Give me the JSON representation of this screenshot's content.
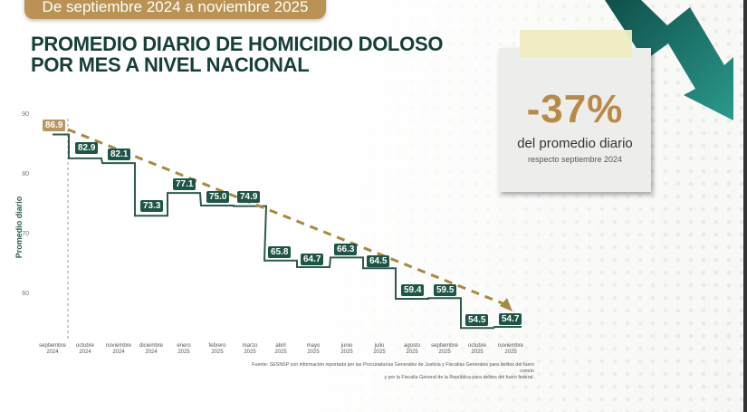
{
  "header": {
    "date_range": "De septiembre 2024 a noviembre 2025",
    "title_line1": "PROMEDIO DIARIO DE HOMICIDIO DOLOSO",
    "title_line2": "POR MES A NIVEL NACIONAL"
  },
  "callout": {
    "value": "-37%",
    "line1": "del promedio diario",
    "line2": "respecto septiembre 2024"
  },
  "colors": {
    "gold": "#b99254",
    "dark_green": "#173f3a",
    "step_line": "#2d5a4e",
    "label_bg": "#1d5546",
    "trend_dash": "#a88a3e",
    "arrow_teal": "#1e7d73"
  },
  "footer": {
    "source_line1": "Fuente: SESNSP con información reportada por las Procuradurías Generales de Justicia y Fiscalías Generales para delitos del fuero común",
    "source_line2": "y por la Fiscalía General de la República para delitos del fuero federal."
  },
  "chart_data": {
    "type": "line",
    "title": "PROMEDIO DIARIO DE HOMICIDIO DOLOSO POR MES A NIVEL NACIONAL",
    "subtitle": "De septiembre 2024 a noviembre 2025",
    "xlabel": "",
    "ylabel": "Promedio diario",
    "ylim": [
      52,
      90
    ],
    "yticks": [
      60,
      70,
      80,
      90
    ],
    "grid": false,
    "legend": "none",
    "categories": [
      {
        "month": "septiembre",
        "year": "2024"
      },
      {
        "month": "octubre",
        "year": "2024"
      },
      {
        "month": "noviembre",
        "year": "2024"
      },
      {
        "month": "diciembre",
        "year": "2024"
      },
      {
        "month": "enero",
        "year": "2025"
      },
      {
        "month": "febrero",
        "year": "2025"
      },
      {
        "month": "marzo",
        "year": "2025"
      },
      {
        "month": "abril",
        "year": "2025"
      },
      {
        "month": "mayo",
        "year": "2025"
      },
      {
        "month": "junio",
        "year": "2025"
      },
      {
        "month": "julio",
        "year": "2025"
      },
      {
        "month": "agosto",
        "year": "2025"
      },
      {
        "month": "septiembre",
        "year": "2025"
      },
      {
        "month": "octubre",
        "year": "2025"
      },
      {
        "month": "noviembre",
        "year": "2025"
      }
    ],
    "series": [
      {
        "name": "Promedio diario",
        "style": "step",
        "values": [
          86.9,
          82.9,
          82.1,
          73.3,
          77.1,
          75.0,
          74.9,
          65.8,
          64.7,
          66.3,
          64.5,
          59.4,
          59.5,
          54.5,
          54.7
        ],
        "labels": [
          "86.9",
          "82.9",
          "82.1",
          "73.3",
          "77.1",
          "75.0",
          "74.9",
          "65.8",
          "64.7",
          "66.3",
          "64.5",
          "59.4",
          "59.5",
          "54.5",
          "54.7"
        ]
      }
    ],
    "annotations": [
      {
        "type": "trend_arrow",
        "from": 86.9,
        "to": 54.7,
        "style": "dashed gold"
      },
      {
        "type": "vertical_dashed_line",
        "at": "septiembre 2024"
      },
      {
        "type": "callout",
        "text": "-37% del promedio diario respecto septiembre 2024"
      }
    ]
  }
}
